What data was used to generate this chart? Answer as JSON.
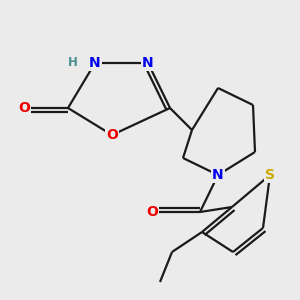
{
  "background_color": "#ebebeb",
  "bond_color": "#1a1a1a",
  "atom_colors": {
    "N": "#0000ee",
    "O": "#ee0000",
    "S": "#ccaa00",
    "H": "#4a9090",
    "C": "#1a1a1a"
  }
}
